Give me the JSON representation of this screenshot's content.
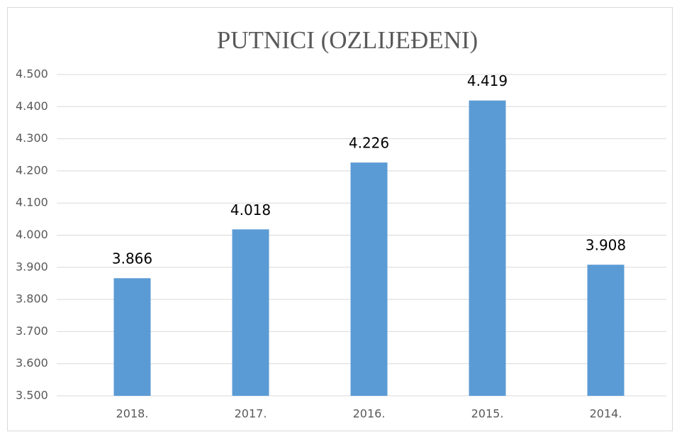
{
  "chart_data": {
    "type": "bar",
    "title": "PUTNICI (OZLIJEĐENI)",
    "categories": [
      "2018.",
      "2017.",
      "2016.",
      "2015.",
      "2014."
    ],
    "values": [
      3866,
      4018,
      4226,
      4419,
      3908
    ],
    "value_labels": [
      "3.866",
      "4.018",
      "4.226",
      "4.419",
      "3.908"
    ],
    "color": "#5b9bd5",
    "ylim": [
      3500,
      4500
    ],
    "yticks": [
      {
        "value": 3500,
        "label": "3.500"
      },
      {
        "value": 3600,
        "label": "3.600"
      },
      {
        "value": 3700,
        "label": "3.700"
      },
      {
        "value": 3800,
        "label": "3.800"
      },
      {
        "value": 3900,
        "label": "3.900"
      },
      {
        "value": 4000,
        "label": "4.000"
      },
      {
        "value": 4100,
        "label": "4.100"
      },
      {
        "value": 4200,
        "label": "4.200"
      },
      {
        "value": 4300,
        "label": "4.300"
      },
      {
        "value": 4400,
        "label": "4.400"
      },
      {
        "value": 4500,
        "label": "4.500"
      }
    ],
    "grid": true
  }
}
